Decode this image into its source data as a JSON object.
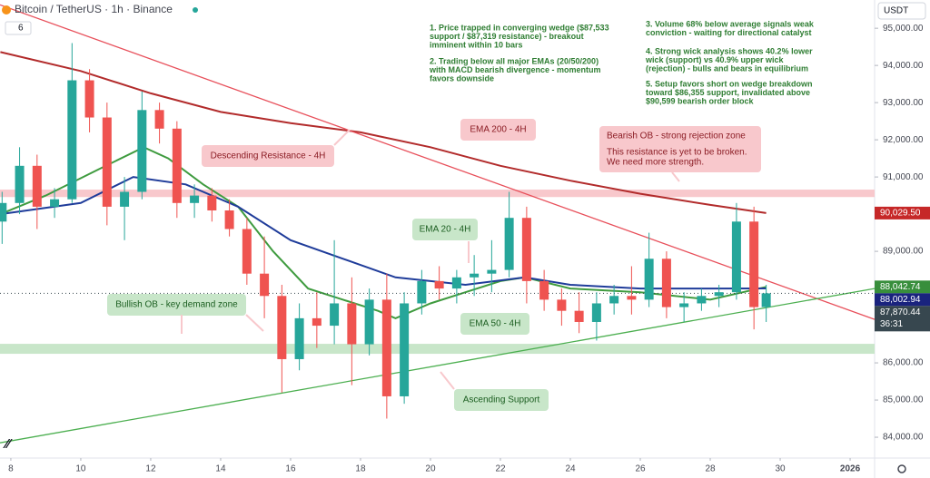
{
  "chart_data": {
    "type": "candlestick",
    "title": "Bitcoin / TetherUS · 1h · Binance",
    "indicator_count": "6",
    "currency": "USDT",
    "xlim": [
      7.69,
      32.7
    ],
    "xticks": [
      8,
      10,
      12,
      14,
      16,
      18,
      20,
      22,
      24,
      26,
      28,
      30,
      {
        "value": 32,
        "label": "2026"
      }
    ],
    "ylim": [
      83440,
      95760
    ],
    "yticks": [
      {
        "value": 84000,
        "label": "84,000.00"
      },
      {
        "value": 85000,
        "label": "85,000.00"
      },
      {
        "value": 86000,
        "label": "86,000.00"
      },
      {
        "value": 87000,
        "label": "87,000.00"
      },
      {
        "value": 88000,
        "label": "88,000.00"
      },
      {
        "value": 89000,
        "label": "89,000.00"
      },
      {
        "value": 90000,
        "label": "90,000.00"
      },
      {
        "value": 91000,
        "label": "91,000.00"
      },
      {
        "value": 92000,
        "label": "92,000.00"
      },
      {
        "value": 93000,
        "label": "93,000.00"
      },
      {
        "value": 94000,
        "label": "94,000.00"
      },
      {
        "value": 95000,
        "label": "95,000.00"
      }
    ],
    "up_color": "#26a69a",
    "down_color": "#ef5350",
    "x": [
      7.75,
      8.25,
      8.75,
      9.25,
      9.75,
      10.25,
      10.75,
      11.25,
      11.75,
      12.25,
      12.75,
      13.25,
      13.75,
      14.25,
      14.75,
      15.25,
      15.75,
      16.25,
      16.75,
      17.25,
      17.75,
      18.25,
      18.75,
      19.25,
      19.75,
      20.25,
      20.75,
      21.25,
      21.75,
      22.25,
      22.75,
      23.25,
      23.75,
      24.25,
      24.75,
      25.25,
      25.75,
      26.25,
      26.75,
      27.25,
      27.75,
      28.25,
      28.75,
      29.25,
      29.6
    ],
    "open": [
      89800,
      90300,
      91300,
      90200,
      90400,
      93600,
      92600,
      90200,
      90600,
      92800,
      92300,
      90300,
      90500,
      90100,
      89600,
      88400,
      87800,
      86100,
      87200,
      87000,
      87600,
      86500,
      87700,
      85100,
      87600,
      88200,
      88000,
      88300,
      88400,
      88500,
      89900,
      88200,
      87700,
      87400,
      87100,
      87600,
      87800,
      87700,
      88800,
      87500,
      87600,
      87800,
      87900,
      89800,
      87500
    ],
    "high": [
      90600,
      91800,
      91600,
      90700,
      94600,
      93900,
      93000,
      91000,
      93300,
      93000,
      92500,
      90800,
      90700,
      90400,
      89900,
      89400,
      88100,
      87600,
      87900,
      89300,
      88300,
      88000,
      88400,
      87900,
      88500,
      88600,
      88500,
      88900,
      89300,
      90600,
      90200,
      88500,
      88000,
      87900,
      87900,
      88100,
      88600,
      89500,
      89000,
      87900,
      88000,
      88100,
      90300,
      90200,
      88100
    ],
    "low": [
      89200,
      90000,
      89600,
      89900,
      90300,
      92200,
      89700,
      89300,
      90400,
      91900,
      89900,
      89900,
      89800,
      89400,
      88100,
      87200,
      85200,
      85800,
      86400,
      86500,
      85400,
      86200,
      84500,
      84900,
      87300,
      87700,
      87600,
      87800,
      87900,
      88300,
      87600,
      87400,
      87000,
      86800,
      86600,
      87300,
      87300,
      87500,
      87200,
      87100,
      87400,
      87500,
      87700,
      86900,
      87100
    ],
    "close": [
      90300,
      91300,
      90200,
      90400,
      93600,
      92600,
      90200,
      90600,
      92800,
      92300,
      90300,
      90500,
      90100,
      89600,
      88400,
      87800,
      86100,
      87200,
      87000,
      87600,
      86500,
      87700,
      85100,
      87600,
      88200,
      88000,
      88300,
      88400,
      88500,
      89900,
      88200,
      87700,
      87400,
      87100,
      87600,
      87800,
      87700,
      88800,
      87500,
      87600,
      87800,
      87900,
      89800,
      87500,
      87870
    ],
    "lines": [
      {
        "color": "#b22b2b",
        "x": [
          7.7,
          10,
          12,
          14,
          16,
          18,
          20,
          22,
          24,
          26,
          28,
          29.6
        ],
        "values": [
          94360,
          93850,
          93250,
          92750,
          92450,
          92200,
          91800,
          91300,
          90900,
          90550,
          90250,
          90030
        ]
      },
      {
        "color": "#3f9b3f",
        "x": [
          7.7,
          9,
          10.5,
          11.8,
          12.5,
          13.5,
          14.5,
          15.5,
          16.5,
          17.5,
          18.5,
          19,
          20,
          21,
          22,
          22.7,
          24,
          26,
          28,
          29.6
        ],
        "values": [
          90000,
          90500,
          91200,
          91800,
          91500,
          90800,
          90200,
          89000,
          88000,
          87700,
          87400,
          87200,
          87600,
          87900,
          88200,
          88300,
          88000,
          87900,
          87700,
          88042.74
        ]
      },
      {
        "color": "#1f3c9a",
        "x": [
          7.7,
          10,
          11.5,
          13,
          14.5,
          16,
          17.5,
          19,
          21,
          22.7,
          24,
          26,
          28,
          29.6
        ],
        "values": [
          90000,
          90300,
          91000,
          90800,
          90200,
          89300,
          88800,
          88300,
          88100,
          88300,
          88100,
          88000,
          88000,
          88002.94
        ]
      },
      {
        "color": "#e8505b",
        "x": [
          7.69,
          32.7
        ],
        "values": [
          95630,
          87170
        ]
      },
      {
        "color": "#4caf50",
        "x": [
          7.69,
          32.7
        ],
        "values": [
          83850,
          88000
        ]
      }
    ],
    "zones": [
      {
        "color": "#f8c8cc",
        "values": [
          90460,
          90660
        ]
      },
      {
        "color": "#c8e6c9",
        "values": [
          86244,
          86512
        ]
      }
    ],
    "price_labels": [
      {
        "value": 90029.5,
        "label": "90,029.50",
        "color": "#c62828"
      },
      {
        "value": 88042.74,
        "label": "88,042.74",
        "color": "#388e3c"
      },
      {
        "value": 88002.94,
        "label": "88,002.94",
        "color": "#1a237e"
      },
      {
        "value": 87870.44,
        "label": "87,870.44",
        "color": "#37474f"
      }
    ],
    "countdown": "36:31",
    "annotations": [
      {
        "text": "Descending Resistance - 4H",
        "style": "red"
      },
      {
        "text": "EMA 200 - 4H",
        "style": "red"
      },
      {
        "text": "EMA 20 - 4H",
        "style": "green"
      },
      {
        "text": "Bullish OB - key demand zone",
        "style": "green"
      },
      {
        "text": "EMA 50 - 4H",
        "style": "green"
      },
      {
        "text": "Ascending Support",
        "style": "green"
      }
    ],
    "bearish_box": [
      "Bearish OB - strong rejection zone",
      "This resistance is yet to be broken.",
      "We need more strength."
    ],
    "notes": [
      [
        "1. Price trapped in converging wedge ($87,533",
        "support / $87,319 resistance) - breakout",
        "imminent within 10 bars"
      ],
      [
        "2. Trading below all major EMAs (20/50/200)",
        "with MACD bearish divergence - momentum",
        "favors downside"
      ],
      [
        "3. Volume 68% below average signals weak",
        "conviction - waiting for directional catalyst"
      ],
      [
        "4. Strong wick analysis shows 40.2% lower",
        "wick (support) vs 40.9% upper wick",
        "(rejection) - bulls and bears in equilibrium"
      ],
      [
        "5. Setup favors short on wedge breakdown",
        "toward $86,355 support, invalidated above",
        "$90,599 bearish order block"
      ]
    ]
  }
}
